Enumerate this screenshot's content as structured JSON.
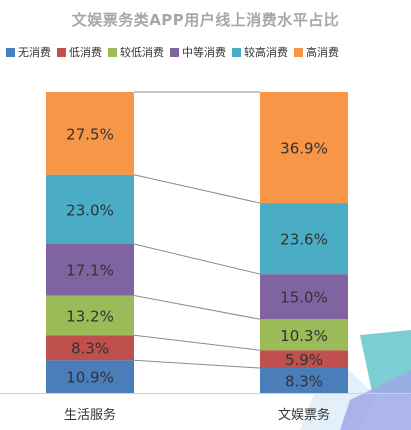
{
  "chart_data": {
    "type": "bar",
    "stacked": true,
    "percent": true,
    "title": "文娱票务类APP用户线上消费水平占比",
    "categories": [
      "生活服务",
      "文娱票务"
    ],
    "series": [
      {
        "name": "无消费",
        "color": "#4a7ebb",
        "values": [
          10.9,
          8.3
        ]
      },
      {
        "name": "低消费",
        "color": "#c0504d",
        "values": [
          8.3,
          5.9
        ]
      },
      {
        "name": "较低消费",
        "color": "#9bbb59",
        "values": [
          13.2,
          10.3
        ]
      },
      {
        "name": "中等消费",
        "color": "#8064a2",
        "values": [
          17.1,
          15.0
        ]
      },
      {
        "name": "较高消费",
        "color": "#4bacc6",
        "values": [
          23.0,
          23.6
        ]
      },
      {
        "name": "高消费",
        "color": "#f79646",
        "values": [
          27.5,
          36.9
        ]
      }
    ],
    "labels": [
      [
        "10.9%",
        "8.3%"
      ],
      [
        "8.3%",
        "5.9%"
      ],
      [
        "13.2%",
        "10.3%"
      ],
      [
        "17.1%",
        "15.0%"
      ],
      [
        "23.0%",
        "23.6%"
      ],
      [
        "27.5%",
        "36.9%"
      ]
    ],
    "legend_position": "top",
    "series_lines": true
  }
}
